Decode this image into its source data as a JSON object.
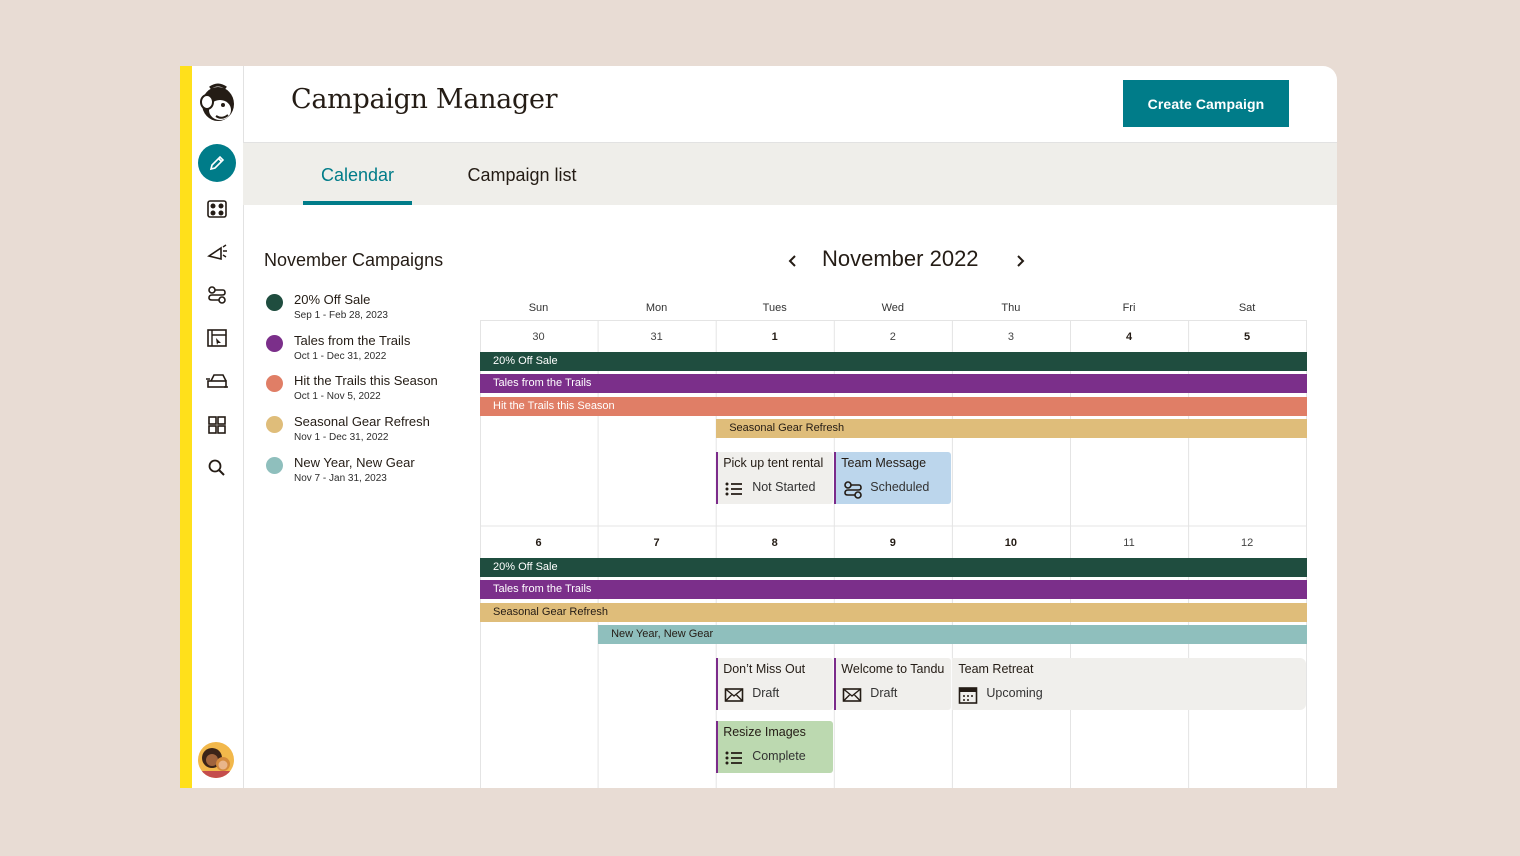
{
  "app": {
    "title": "Campaign Manager",
    "create_button": "Create Campaign"
  },
  "tabs": [
    {
      "label": "Calendar",
      "active": true
    },
    {
      "label": "Campaign list",
      "active": false
    }
  ],
  "sidebar": {
    "items": [
      {
        "name": "create",
        "icon": "pencil-icon",
        "active": true
      },
      {
        "name": "audience",
        "icon": "audience-icon"
      },
      {
        "name": "campaigns",
        "icon": "megaphone-icon"
      },
      {
        "name": "automations",
        "icon": "automation-icon"
      },
      {
        "name": "website",
        "icon": "website-icon"
      },
      {
        "name": "integrations",
        "icon": "integrations-icon"
      },
      {
        "name": "content",
        "icon": "grid-icon"
      },
      {
        "name": "search",
        "icon": "search-icon"
      }
    ]
  },
  "legend": {
    "title": "November Campaigns",
    "items": [
      {
        "name": "20% Off Sale",
        "dates": "Sep 1 - Feb 28, 2023",
        "color": "#1f4d3f"
      },
      {
        "name": "Tales from the Trails",
        "dates": "Oct 1 - Dec 31, 2022",
        "color": "#7b2f8a"
      },
      {
        "name": "Hit the Trails this Season",
        "dates": "Oct 1 - Nov 5, 2022",
        "color": "#e07e66"
      },
      {
        "name": "Seasonal Gear Refresh",
        "dates": "Nov 1 - Dec 31, 2022",
        "color": "#dfbd7a"
      },
      {
        "name": "New Year, New Gear",
        "dates": "Nov 7 - Jan 31, 2023",
        "color": "#8fbfbd"
      }
    ]
  },
  "calendar": {
    "month": "November 2022",
    "weekdays": [
      "Sun",
      "Mon",
      "Tues",
      "Wed",
      "Thu",
      "Fri",
      "Sat"
    ],
    "weeks": [
      {
        "dates": [
          {
            "d": "30",
            "current": false
          },
          {
            "d": "31",
            "current": false
          },
          {
            "d": "1",
            "current": true
          },
          {
            "d": "2",
            "current": false
          },
          {
            "d": "3",
            "current": false
          },
          {
            "d": "4",
            "current": true
          },
          {
            "d": "5",
            "current": true
          }
        ],
        "bars": [
          {
            "label": "20% Off Sale",
            "start": 0,
            "end": 6,
            "color": "#1f4d3f",
            "text": "#ffffff"
          },
          {
            "label": "Tales from the Trails",
            "start": 0,
            "end": 6,
            "color": "#7b2f8a",
            "text": "#ffffff"
          },
          {
            "label": "Hit the Trails this Season",
            "start": 0,
            "end": 6,
            "color": "#e07e66",
            "text": "#ffffff"
          },
          {
            "label": "Seasonal Gear Refresh",
            "start": 2,
            "end": 6,
            "color": "#dfbd7a",
            "text": "#241c15"
          }
        ],
        "cards": [
          {
            "title": "Pick up tent rental",
            "status": "Not Started",
            "icon": "checklist-icon",
            "start": 2,
            "end": 2,
            "row": 0,
            "bg": "#f0efec"
          },
          {
            "title": "Team Message",
            "status": "Scheduled",
            "icon": "automation-icon",
            "start": 3,
            "end": 3,
            "row": 0,
            "bg": "#bcd6ec"
          }
        ]
      },
      {
        "dates": [
          {
            "d": "6",
            "current": true
          },
          {
            "d": "7",
            "current": true
          },
          {
            "d": "8",
            "current": true
          },
          {
            "d": "9",
            "current": true
          },
          {
            "d": "10",
            "current": true
          },
          {
            "d": "11",
            "current": false
          },
          {
            "d": "12",
            "current": false
          }
        ],
        "bars": [
          {
            "label": "20% Off Sale",
            "start": 0,
            "end": 6,
            "color": "#1f4d3f",
            "text": "#ffffff"
          },
          {
            "label": "Tales from the Trails",
            "start": 0,
            "end": 6,
            "color": "#7b2f8a",
            "text": "#ffffff"
          },
          {
            "label": "Seasonal Gear Refresh",
            "start": 0,
            "end": 6,
            "color": "#dfbd7a",
            "text": "#241c15"
          },
          {
            "label": "New Year, New Gear",
            "start": 1,
            "end": 6,
            "color": "#8fbfbd",
            "text": "#241c15"
          }
        ],
        "cards": [
          {
            "title": "Don’t Miss Out",
            "status": "Draft",
            "icon": "envelope-icon",
            "start": 2,
            "end": 2,
            "row": 0,
            "bg": "#f0efec"
          },
          {
            "title": "Welcome to Tandu",
            "status": "Draft",
            "icon": "envelope-icon",
            "start": 3,
            "end": 3,
            "row": 0,
            "bg": "#f0efec"
          },
          {
            "title": "Team Retreat",
            "status": "Upcoming",
            "icon": "calendar-icon",
            "start": 4,
            "end": 6,
            "row": 0,
            "bg": "#f0efec",
            "noborder": true
          },
          {
            "title": "Resize Images",
            "status": "Complete",
            "icon": "checklist-icon",
            "start": 2,
            "end": 2,
            "row": 1,
            "bg": "#bcd9b0"
          }
        ]
      }
    ]
  }
}
